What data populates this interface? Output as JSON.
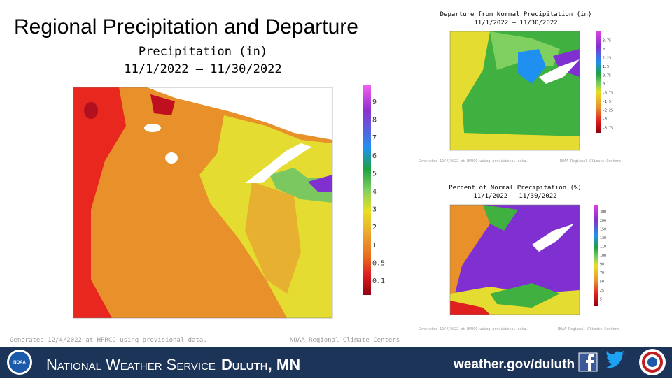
{
  "title": "Regional Precipitation and Departure",
  "main_map": {
    "title": "Precipitation (in)",
    "dates": "11/1/2022 – 11/30/2022",
    "legend": [
      "9",
      "8",
      "7",
      "6",
      "5",
      "4",
      "3",
      "2",
      "1",
      "0.5",
      "0.1"
    ],
    "footer_left": "Generated 12/4/2022 at HPRCC using provisional data.",
    "footer_right": "NOAA Regional Climate Centers"
  },
  "departure_map": {
    "title": "Departure from Normal Precipitation (in)",
    "dates": "11/1/2022 – 11/30/2022",
    "legend": [
      "3.75",
      "3",
      "2.25",
      "1.5",
      "0.75",
      "0",
      "-0.75",
      "-1.5",
      "-2.25",
      "-3",
      "-3.75"
    ],
    "footer_left": "Generated 12/4/2022 at HPRCC using provisional data.",
    "footer_right": "NOAA Regional Climate Centers"
  },
  "percent_map": {
    "title": "Percent of Normal Precipitation (%)",
    "dates": "11/1/2022 – 11/30/2022",
    "legend": [
      "300",
      "200",
      "150",
      "130",
      "110",
      "100",
      "90",
      "70",
      "50",
      "25",
      "5"
    ],
    "footer_left": "Generated 12/4/2022 at HPRCC using provisional data.",
    "footer_right": "NOAA Regional Climate Centers"
  },
  "banner": {
    "agency": "National Weather Service",
    "office": "Duluth, MN",
    "url": "weather.gov/duluth",
    "logo": "NOAA"
  }
}
